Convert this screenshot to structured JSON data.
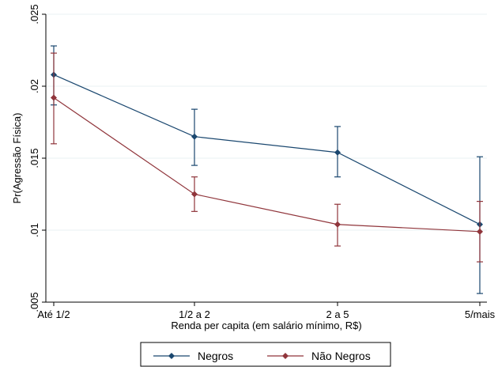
{
  "chart_data": {
    "type": "line",
    "categories": [
      "Até 1/2",
      "1/2 a 2",
      "2 a 5",
      "5/mais"
    ],
    "xlabel": "Renda per capita (em salário mínimo, R$)",
    "ylabel": "Pr(Agressão Física)",
    "ylim": [
      0.005,
      0.025
    ],
    "yticks": [
      0.005,
      0.01,
      0.015,
      0.02,
      0.025
    ],
    "ytick_labels": [
      ".005",
      ".01",
      ".015",
      ".02",
      ".025"
    ],
    "grid": true,
    "legend_position": "bottom",
    "series": [
      {
        "name": "Negros",
        "color": "#1a476f",
        "values": [
          0.0208,
          0.0165,
          0.0154,
          0.0104
        ],
        "ci_low": [
          0.0187,
          0.0145,
          0.0137,
          0.0056
        ],
        "ci_high": [
          0.0228,
          0.0184,
          0.0172,
          0.0151
        ]
      },
      {
        "name": "Não Negros",
        "color": "#90353b",
        "values": [
          0.0192,
          0.0125,
          0.0104,
          0.0099
        ],
        "ci_low": [
          0.016,
          0.0113,
          0.0089,
          0.0078
        ],
        "ci_high": [
          0.0223,
          0.0137,
          0.0118,
          0.012
        ]
      }
    ]
  }
}
